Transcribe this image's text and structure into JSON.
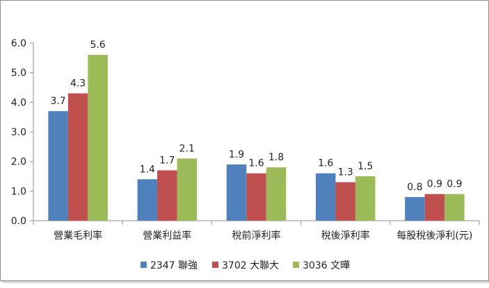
{
  "chart_data": {
    "type": "bar",
    "categories": [
      "營業毛利率",
      "營業利益率",
      "稅前淨利率",
      "稅後淨利率",
      "每股稅後淨利(元)"
    ],
    "series": [
      {
        "name": "2347 聯強",
        "color": "#4F81BD",
        "values": [
          3.7,
          1.4,
          1.9,
          1.6,
          0.8
        ],
        "labels": [
          "3.7",
          "1.4",
          "1.9",
          "1.6",
          "0.8"
        ]
      },
      {
        "name": "3702 大聯大",
        "color": "#C0504D",
        "values": [
          4.3,
          1.7,
          1.6,
          1.3,
          0.9
        ],
        "labels": [
          "4.3",
          "1.7",
          "1.6",
          "1.3",
          "0.9"
        ]
      },
      {
        "name": "3036 文曄",
        "color": "#9BBB59",
        "values": [
          5.6,
          2.1,
          1.8,
          1.5,
          0.9
        ],
        "labels": [
          "5.6",
          "2.1",
          "1.8",
          "1.5",
          "0.9"
        ]
      }
    ],
    "ylim": [
      0,
      6
    ],
    "yticks": [
      "0.0",
      "1.0",
      "2.0",
      "3.0",
      "4.0",
      "5.0",
      "6.0"
    ],
    "title": "",
    "xlabel": "",
    "ylabel": "",
    "grid": false,
    "legend": "bottom"
  }
}
